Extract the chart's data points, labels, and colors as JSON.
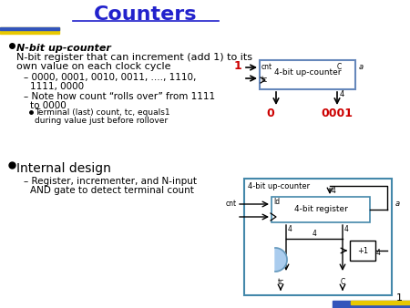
{
  "title": "Counters",
  "title_color": "#2222CC",
  "bg_color": "#FFFFFF",
  "bullet1_bold_italic": "N-bit up-counter",
  "bullet1_text": ": N-bit register that can increment (add 1) to its own value on each clock cycle",
  "sub1": "0000, 0001, 0010, 0011, ...., 1110,",
  "sub1b": "1111, 0000",
  "sub2_line1": "– Note how count “rolls over” from 1111",
  "sub2_line2": "to 0000",
  "subsub1": "Terminal (last) count, tc, equals1",
  "subsub2": "during value just before rollover",
  "bullet2": "Internal design",
  "sub3_line1": "– Register, incrementer, and N-input",
  "sub3_line2": "AND gate to detect terminal count",
  "diagram1_box_color": "#6688BB",
  "diagram2_box_color": "#4488AA",
  "red_color": "#CC0000",
  "page_number": "1"
}
